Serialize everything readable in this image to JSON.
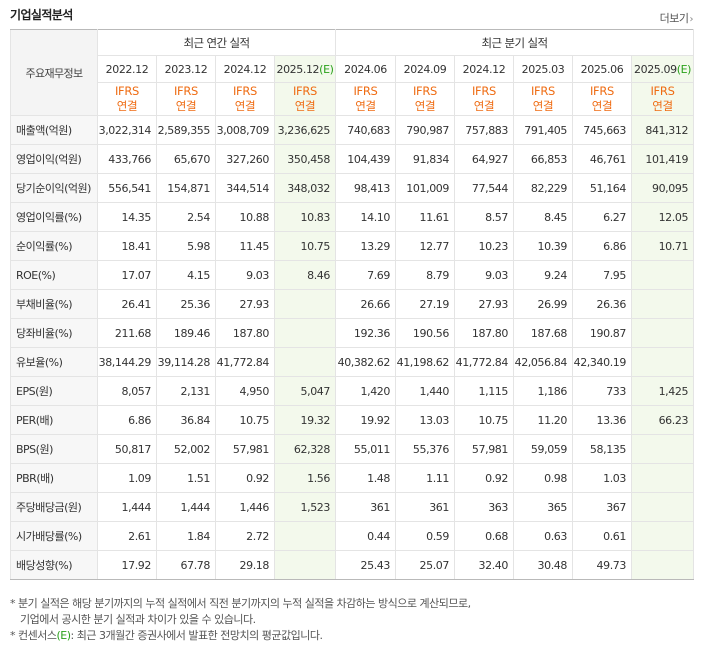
{
  "section_title": "기업실적분석",
  "more_link": "더보기",
  "corner_label": "주요재무정보",
  "groups": {
    "annual": "최근 연간 실적",
    "quarterly": "최근 분기 실적"
  },
  "annual_periods": [
    {
      "label": "2022.12",
      "est": ""
    },
    {
      "label": "2023.12",
      "est": ""
    },
    {
      "label": "2024.12",
      "est": ""
    },
    {
      "label": "2025.12",
      "est": "(E)"
    }
  ],
  "quarter_periods": [
    {
      "label": "2024.06",
      "est": ""
    },
    {
      "label": "2024.09",
      "est": ""
    },
    {
      "label": "2024.12",
      "est": ""
    },
    {
      "label": "2025.03",
      "est": ""
    },
    {
      "label": "2025.06",
      "est": ""
    },
    {
      "label": "2025.09",
      "est": "(E)"
    }
  ],
  "basis": {
    "line1": "IFRS",
    "line2": "연결"
  },
  "rows": [
    {
      "label": "매출액(억원)",
      "values": [
        "3,022,314",
        "2,589,355",
        "3,008,709",
        "3,236,625",
        "740,683",
        "790,987",
        "757,883",
        "791,405",
        "745,663",
        "841,312"
      ]
    },
    {
      "label": "영업이익(억원)",
      "values": [
        "433,766",
        "65,670",
        "327,260",
        "350,458",
        "104,439",
        "91,834",
        "64,927",
        "66,853",
        "46,761",
        "101,419"
      ]
    },
    {
      "label": "당기순이익(억원)",
      "values": [
        "556,541",
        "154,871",
        "344,514",
        "348,032",
        "98,413",
        "101,009",
        "77,544",
        "82,229",
        "51,164",
        "90,095"
      ]
    },
    {
      "label": "영업이익률(%)",
      "values": [
        "14.35",
        "2.54",
        "10.88",
        "10.83",
        "14.10",
        "11.61",
        "8.57",
        "8.45",
        "6.27",
        "12.05"
      ]
    },
    {
      "label": "순이익률(%)",
      "values": [
        "18.41",
        "5.98",
        "11.45",
        "10.75",
        "13.29",
        "12.77",
        "10.23",
        "10.39",
        "6.86",
        "10.71"
      ]
    },
    {
      "label": "ROE(%)",
      "values": [
        "17.07",
        "4.15",
        "9.03",
        "8.46",
        "7.69",
        "8.79",
        "9.03",
        "9.24",
        "7.95",
        ""
      ]
    },
    {
      "label": "부채비율(%)",
      "values": [
        "26.41",
        "25.36",
        "27.93",
        "",
        "26.66",
        "27.19",
        "27.93",
        "26.99",
        "26.36",
        ""
      ]
    },
    {
      "label": "당좌비율(%)",
      "values": [
        "211.68",
        "189.46",
        "187.80",
        "",
        "192.36",
        "190.56",
        "187.80",
        "187.68",
        "190.87",
        ""
      ]
    },
    {
      "label": "유보율(%)",
      "values": [
        "38,144.29",
        "39,114.28",
        "41,772.84",
        "",
        "40,382.62",
        "41,198.62",
        "41,772.84",
        "42,056.84",
        "42,340.19",
        ""
      ]
    },
    {
      "label": "EPS(원)",
      "values": [
        "8,057",
        "2,131",
        "4,950",
        "5,047",
        "1,420",
        "1,440",
        "1,115",
        "1,186",
        "733",
        "1,425"
      ]
    },
    {
      "label": "PER(배)",
      "values": [
        "6.86",
        "36.84",
        "10.75",
        "19.32",
        "19.92",
        "13.03",
        "10.75",
        "11.20",
        "13.36",
        "66.23"
      ]
    },
    {
      "label": "BPS(원)",
      "values": [
        "50,817",
        "52,002",
        "57,981",
        "62,328",
        "55,011",
        "55,376",
        "57,981",
        "59,059",
        "58,135",
        ""
      ]
    },
    {
      "label": "PBR(배)",
      "values": [
        "1.09",
        "1.51",
        "0.92",
        "1.56",
        "1.48",
        "1.11",
        "0.92",
        "0.98",
        "1.03",
        ""
      ]
    },
    {
      "label": "주당배당금(원)",
      "values": [
        "1,444",
        "1,444",
        "1,446",
        "1,523",
        "361",
        "361",
        "363",
        "365",
        "367",
        ""
      ]
    },
    {
      "label": "시가배당률(%)",
      "values": [
        "2.61",
        "1.84",
        "2.72",
        "",
        "0.44",
        "0.59",
        "0.68",
        "0.63",
        "0.61",
        ""
      ]
    },
    {
      "label": "배당성향(%)",
      "values": [
        "17.92",
        "67.78",
        "29.18",
        "",
        "25.43",
        "25.07",
        "32.40",
        "30.48",
        "49.73",
        ""
      ]
    }
  ],
  "notes": {
    "line1": "* 분기 실적은 해당 분기까지의 누적 실적에서 직전 분기까지의 누적 실적을 차감하는 방식으로 계산되므로,",
    "line2": "기업에서 공시한 분기 실적과 차이가 있을 수 있습니다.",
    "line3_pre": "* 컨센서스",
    "line3_e": "(E)",
    "line3_post": ": 최근 3개월간 증권사에서 발표한 전망치의 평균값입니다."
  }
}
